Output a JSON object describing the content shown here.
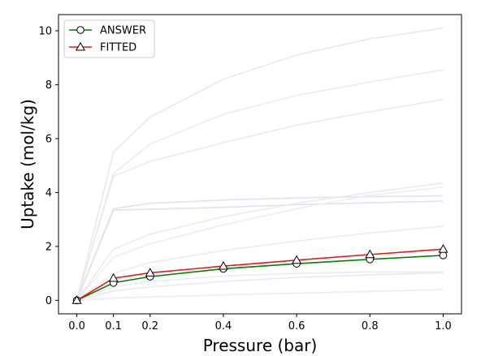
{
  "chart_data": {
    "type": "line",
    "xlabel": "Pressure (bar)",
    "ylabel": "Uptake (mol/kg)",
    "xlim": [
      -0.05,
      1.05
    ],
    "ylim": [
      -0.5,
      10.6
    ],
    "xticks": [
      0.0,
      0.1,
      0.2,
      0.4,
      0.6,
      0.8,
      1.0
    ],
    "xtick_labels": [
      "0.0",
      "0.1",
      "0.2",
      "0.4",
      "0.6",
      "0.8",
      "1.0"
    ],
    "yticks": [
      0,
      2,
      4,
      6,
      8,
      10
    ],
    "ytick_labels": [
      "0",
      "2",
      "4",
      "6",
      "8",
      "10"
    ],
    "grid": false,
    "legend_position": "top-left",
    "x": [
      0.0,
      0.1,
      0.2,
      0.4,
      0.6,
      0.8,
      1.0
    ],
    "series": [
      {
        "name": "ANSWER",
        "values": [
          0.0,
          0.65,
          0.88,
          1.17,
          1.36,
          1.52,
          1.67
        ],
        "color": "#008000",
        "marker": "circle"
      },
      {
        "name": "FITTED",
        "values": [
          0.0,
          0.82,
          1.02,
          1.27,
          1.49,
          1.7,
          1.9
        ],
        "color": "#e31a1c",
        "marker": "triangle"
      }
    ],
    "background_series": [
      {
        "values": [
          0.0,
          5.5,
          6.8,
          8.2,
          9.1,
          9.7,
          10.1
        ],
        "color": "#e8e8e8"
      },
      {
        "values": [
          0.0,
          4.7,
          5.8,
          6.9,
          7.6,
          8.1,
          8.55
        ],
        "color": "#ececec"
      },
      {
        "values": [
          0.0,
          4.6,
          5.15,
          5.85,
          6.5,
          7.0,
          7.45
        ],
        "color": "#f5e6e6"
      },
      {
        "values": [
          0.0,
          3.4,
          3.6,
          3.72,
          3.8,
          3.85,
          3.88
        ],
        "color": "#e0e4ea"
      },
      {
        "values": [
          0.0,
          3.35,
          3.38,
          3.45,
          3.55,
          3.62,
          3.68
        ],
        "color": "#dde2ef"
      },
      {
        "values": [
          0.0,
          1.9,
          2.45,
          3.1,
          3.6,
          4.0,
          4.35
        ],
        "color": "#ebebeb"
      },
      {
        "values": [
          0.0,
          1.6,
          2.1,
          2.8,
          3.4,
          3.9,
          4.2
        ],
        "color": "#eeeeee"
      },
      {
        "values": [
          0.0,
          1.0,
          1.4,
          1.85,
          2.2,
          2.5,
          2.75
        ],
        "color": "#f5e8e8"
      },
      {
        "values": [
          0.0,
          0.5,
          0.7,
          0.9,
          1.0,
          1.05,
          1.05
        ],
        "color": "#e5ecf5"
      },
      {
        "values": [
          0.0,
          0.35,
          0.5,
          0.7,
          0.85,
          0.95,
          1.02
        ],
        "color": "#e6eaf2"
      },
      {
        "values": [
          0.0,
          0.08,
          0.13,
          0.2,
          0.27,
          0.33,
          0.4
        ],
        "color": "#f6e9e9"
      }
    ]
  }
}
